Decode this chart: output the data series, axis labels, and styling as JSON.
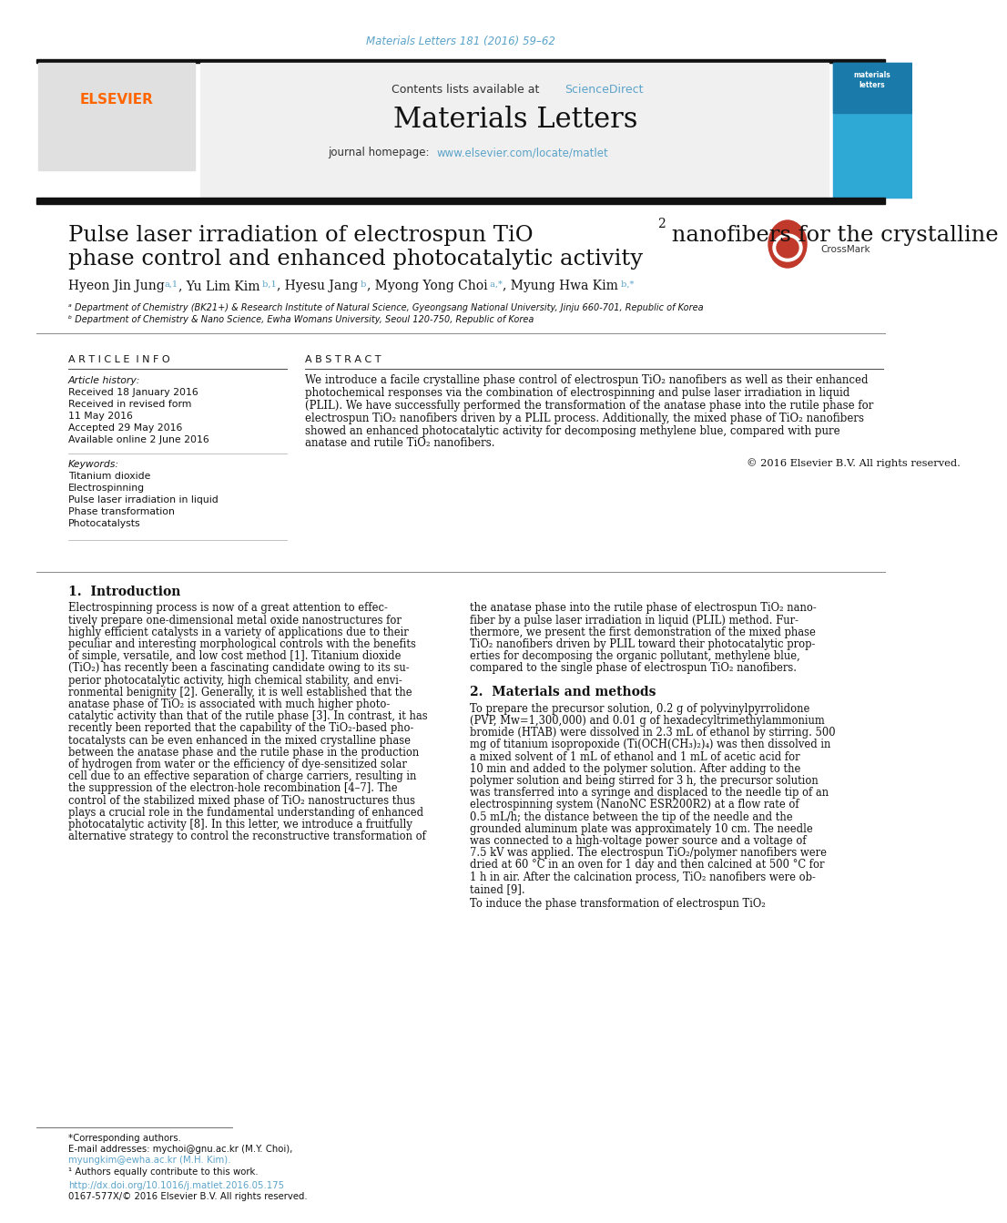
{
  "journal_citation": "Materials Letters 181 (2016) 59–62",
  "journal_citation_color": "#5ba3c9",
  "header_bg_color": "#f0f0f0",
  "contents_line": "Contents lists available at",
  "sciencedirect_text": "ScienceDirect",
  "sciencedirect_color": "#5ba3c9",
  "journal_name": "Materials Letters",
  "journal_homepage_label": "journal homepage:",
  "journal_homepage_url": "www.elsevier.com/locate/matlet",
  "journal_homepage_color": "#5ba3c9",
  "section_article_info": "A R T I C L E  I N F O",
  "section_abstract": "A B S T R A C T",
  "article_history_label": "Article history:",
  "received1": "Received 18 January 2016",
  "revised_label": "Received in revised form",
  "revised_date": "11 May 2016",
  "accepted": "Accepted 29 May 2016",
  "available": "Available online 2 June 2016",
  "keywords_label": "Keywords:",
  "keyword1": "Titanium dioxide",
  "keyword2": "Electrospinning",
  "keyword3": "Pulse laser irradiation in liquid",
  "keyword4": "Phase transformation",
  "keyword5": "Photocatalysts",
  "copyright": "© 2016 Elsevier B.V. All rights reserved.",
  "intro_heading": "1.  Introduction",
  "section2_heading": "2.  Materials and methods",
  "footer_corresponding": "*Corresponding authors.",
  "footer_email": "E-mail addresses: mychoi@gnu.ac.kr (M.Y. Choi),",
  "footer_email2": "myungkim@ewha.ac.kr (M.H. Kim).",
  "footer_sup": "¹ Authors equally contribute to this work.",
  "footer_doi": "http://dx.doi.org/10.1016/j.matlet.2016.05.175",
  "footer_issn": "0167-577X/© 2016 Elsevier B.V. All rights reserved.",
  "affil_a": "ᵃ Department of Chemistry (BK21+) & Research Institute of Natural Science, Gyeongsang National University, Jinju 660-701, Republic of Korea",
  "affil_b": "ᵇ Department of Chemistry & Nano Science, Ewha Womans University, Seoul 120-750, Republic of Korea",
  "bg_color": "#ffffff",
  "link_color": "#5ba3c9",
  "abstract_lines": [
    "We introduce a facile crystalline phase control of electrospun TiO₂ nanofibers as well as their enhanced",
    "photochemical responses via the combination of electrospinning and pulse laser irradiation in liquid",
    "(PLIL). We have successfully performed the transformation of the anatase phase into the rutile phase for",
    "electrospun TiO₂ nanofibers driven by a PLIL process. Additionally, the mixed phase of TiO₂ nanofibers",
    "showed an enhanced photocatalytic activity for decomposing methylene blue, compared with pure",
    "anatase and rutile TiO₂ nanofibers."
  ],
  "intro_lines_left": [
    "Electrospinning process is now of a great attention to effec-",
    "tively prepare one-dimensional metal oxide nanostructures for",
    "highly efficient catalysts in a variety of applications due to their",
    "peculiar and interesting morphological controls with the benefits",
    "of simple, versatile, and low cost method [1]. Titanium dioxide",
    "(TiO₂) has recently been a fascinating candidate owing to its su-",
    "perior photocatalytic activity, high chemical stability, and envi-",
    "ronmental benignity [2]. Generally, it is well established that the",
    "anatase phase of TiO₂ is associated with much higher photo-",
    "catalytic activity than that of the rutile phase [3]. In contrast, it has",
    "recently been reported that the capability of the TiO₂-based pho-",
    "tocatalysts can be even enhanced in the mixed crystalline phase",
    "between the anatase phase and the rutile phase in the production",
    "of hydrogen from water or the efficiency of dye-sensitized solar",
    "cell due to an effective separation of charge carriers, resulting in",
    "the suppression of the electron-hole recombination [4–7]. The",
    "control of the stabilized mixed phase of TiO₂ nanostructures thus",
    "plays a crucial role in the fundamental understanding of enhanced",
    "photocatalytic activity [8]. In this letter, we introduce a fruitfully",
    "alternative strategy to control the reconstructive transformation of"
  ],
  "intro_lines_right": [
    "the anatase phase into the rutile phase of electrospun TiO₂ nano-",
    "fiber by a pulse laser irradiation in liquid (PLIL) method. Fur-",
    "thermore, we present the first demonstration of the mixed phase",
    "TiO₂ nanofibers driven by PLIL toward their photocatalytic prop-",
    "erties for decomposing the organic pollutant, methylene blue,",
    "compared to the single phase of electrospun TiO₂ nanofibers."
  ],
  "sec2_lines": [
    "To prepare the precursor solution, 0.2 g of polyvinylpyrrolidone",
    "(PVP, Mw=1,300,000) and 0.01 g of hexadecyltrimethylammonium",
    "bromide (HTAB) were dissolved in 2.3 mL of ethanol by stirring. 500",
    "mg of titanium isopropoxide (Ti(OCH(CH₃)₂)₄) was then dissolved in",
    "a mixed solvent of 1 mL of ethanol and 1 mL of acetic acid for",
    "10 min and added to the polymer solution. After adding to the",
    "polymer solution and being stirred for 3 h, the precursor solution",
    "was transferred into a syringe and displaced to the needle tip of an",
    "electrospinning system (NanoNC ESR200R2) at a flow rate of",
    "0.5 mL/h; the distance between the tip of the needle and the",
    "grounded aluminum plate was approximately 10 cm. The needle",
    "was connected to a high-voltage power source and a voltage of",
    "7.5 kV was applied. The electrospun TiO₂/polymer nanofibers were",
    "dried at 60 °C in an oven for 1 day and then calcined at 500 °C for",
    "1 h in air. After the calcination process, TiO₂ nanofibers were ob-",
    "tained [9]."
  ],
  "sec2_last": "To induce the phase transformation of electrospun TiO₂"
}
